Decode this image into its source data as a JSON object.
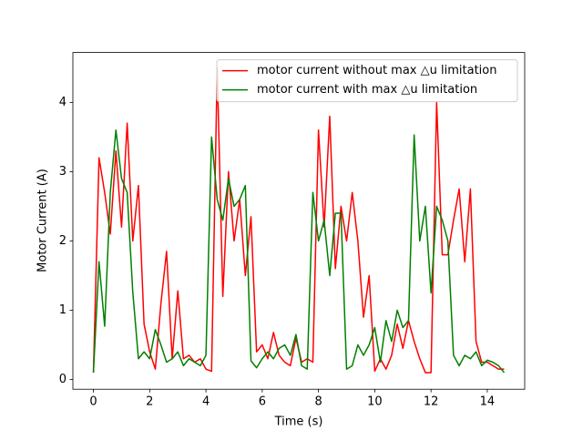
{
  "chart_data": {
    "type": "line",
    "xlabel": "Time (s)",
    "ylabel": "Motor Current (A)",
    "x": [
      0,
      0.2,
      0.4,
      0.6,
      0.8,
      1.0,
      1.2,
      1.4,
      1.6,
      1.8,
      2.0,
      2.2,
      2.4,
      2.6,
      2.8,
      3.0,
      3.2,
      3.4,
      3.6,
      3.8,
      4.0,
      4.2,
      4.4,
      4.6,
      4.8,
      5.0,
      5.2,
      5.4,
      5.6,
      5.8,
      6.0,
      6.2,
      6.4,
      6.6,
      6.8,
      7.0,
      7.2,
      7.4,
      7.6,
      7.8,
      8.0,
      8.2,
      8.4,
      8.6,
      8.8,
      9.0,
      9.2,
      9.4,
      9.6,
      9.8,
      10.0,
      10.2,
      10.4,
      10.6,
      10.8,
      11.0,
      11.2,
      11.4,
      11.6,
      11.8,
      12.0,
      12.2,
      12.4,
      12.6,
      12.8,
      13.0,
      13.2,
      13.4,
      13.6,
      13.8,
      14.0,
      14.2,
      14.4,
      14.6
    ],
    "series": [
      {
        "name": "motor current without max △u limitation",
        "color": "#ff0000",
        "values": [
          0.1,
          3.2,
          2.7,
          2.1,
          3.3,
          2.2,
          3.7,
          2.0,
          2.8,
          0.8,
          0.4,
          0.15,
          1.1,
          1.85,
          0.3,
          1.28,
          0.3,
          0.35,
          0.25,
          0.3,
          0.15,
          0.12,
          4.5,
          1.2,
          3.0,
          2.0,
          2.6,
          1.5,
          2.35,
          0.4,
          0.5,
          0.3,
          0.68,
          0.35,
          0.25,
          0.2,
          0.6,
          0.25,
          0.3,
          0.25,
          3.6,
          2.2,
          3.8,
          1.6,
          2.5,
          2.0,
          2.7,
          2.0,
          0.9,
          1.5,
          0.12,
          0.3,
          0.15,
          0.35,
          0.8,
          0.45,
          0.85,
          0.55,
          0.3,
          0.1,
          0.1,
          4.0,
          1.8,
          1.8,
          2.3,
          2.75,
          1.7,
          2.75,
          0.55,
          0.25,
          0.25,
          0.2,
          0.15,
          0.15
        ]
      },
      {
        "name": "motor current with max △u limitation",
        "color": "#008000",
        "values": [
          0.1,
          1.7,
          0.77,
          2.7,
          3.6,
          2.9,
          2.7,
          1.26,
          0.3,
          0.4,
          0.3,
          0.72,
          0.5,
          0.25,
          0.3,
          0.4,
          0.2,
          0.3,
          0.25,
          0.2,
          0.35,
          3.5,
          2.6,
          2.3,
          2.9,
          2.5,
          2.6,
          2.8,
          0.27,
          0.17,
          0.3,
          0.4,
          0.3,
          0.45,
          0.5,
          0.35,
          0.65,
          0.2,
          0.15,
          2.7,
          2.0,
          2.3,
          1.5,
          2.4,
          2.4,
          0.15,
          0.2,
          0.5,
          0.35,
          0.5,
          0.75,
          0.25,
          0.85,
          0.55,
          1.0,
          0.75,
          0.85,
          3.53,
          2.0,
          2.5,
          1.25,
          2.5,
          2.3,
          2.0,
          0.35,
          0.2,
          0.35,
          0.3,
          0.4,
          0.2,
          0.28,
          0.25,
          0.2,
          0.1
        ]
      }
    ],
    "xlim": [
      -0.73,
      15.33
    ],
    "xticks": [
      0,
      2,
      4,
      6,
      8,
      10,
      12,
      14
    ],
    "ylim": [
      -0.14,
      4.72
    ],
    "yticks": [
      0,
      1,
      2,
      3,
      4
    ],
    "legend": "upper right",
    "grid": false
  }
}
